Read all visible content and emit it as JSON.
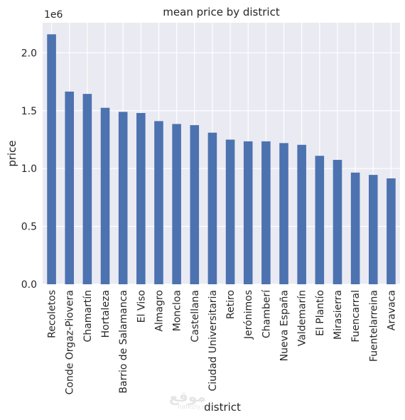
{
  "chart_data": {
    "type": "bar",
    "title": "mean price by district",
    "xlabel": "district",
    "ylabel": "price",
    "y_offset_label": "1e6",
    "ylim": [
      0,
      2260000
    ],
    "yticks": [
      0,
      500000,
      1000000,
      1500000,
      2000000
    ],
    "ytick_labels": [
      "0.0",
      "0.5",
      "1.0",
      "1.5",
      "2.0"
    ],
    "grid": true,
    "bar_color": "#4c72b0",
    "background_color": "#eaeaf2",
    "categories": [
      "Recoletos",
      "Conde Orgaz-Piovera",
      "Chamartín",
      "Hortaleza",
      "Barrio de Salamanca",
      "El Viso",
      "Almagro",
      "Moncloa",
      "Castellana",
      "Ciudad Universitaria",
      "Retiro",
      "Jerónimos",
      "Chamberí",
      "Nueva España",
      "Valdemarín",
      "El Plantío",
      "Mirasierra",
      "Fuencarral",
      "Fuentelarreina",
      "Aravaca"
    ],
    "values": [
      2160000,
      1665000,
      1645000,
      1525000,
      1490000,
      1480000,
      1410000,
      1385000,
      1375000,
      1310000,
      1250000,
      1235000,
      1235000,
      1220000,
      1205000,
      1110000,
      1075000,
      965000,
      945000,
      915000
    ]
  },
  "watermark": {
    "text": "موقع",
    "subtext": "nafezly.com"
  }
}
